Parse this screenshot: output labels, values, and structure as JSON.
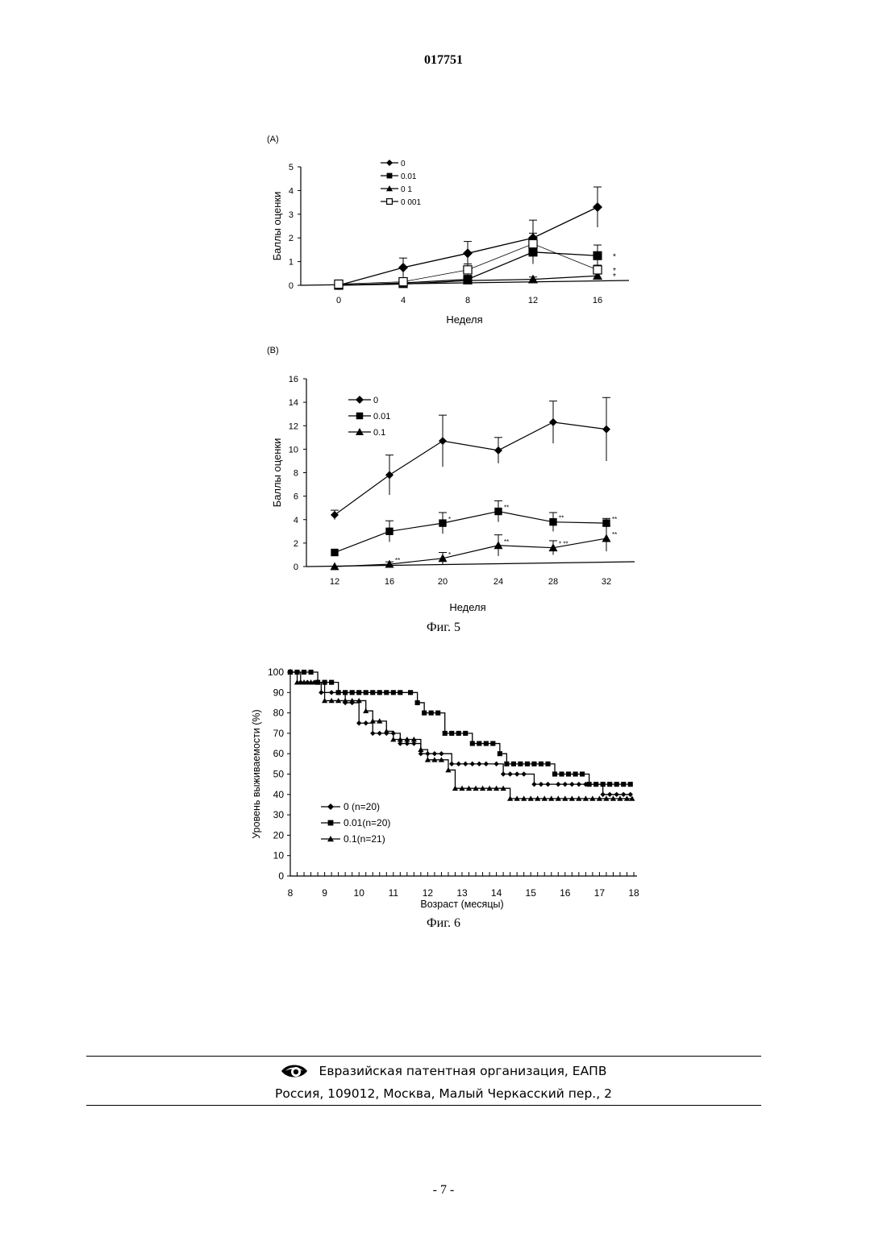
{
  "document": {
    "number": "017751",
    "fig5_caption": "Фиг. 5",
    "fig6_caption": "Фиг. 6",
    "page_number": "- 7 -"
  },
  "footer": {
    "org": "Евразийская патентная организация, ЕАПВ",
    "address": "Россия, 109012, Москва, Малый Черкасский пер., 2",
    "logo_icon": "eapo-eye-logo-icon"
  },
  "chart_data": [
    {
      "id": "fig5a",
      "panel_label": "(A)",
      "type": "line",
      "xlabel": "Неделя",
      "ylabel": "Баллы оценки",
      "x": [
        0,
        4,
        8,
        12,
        16
      ],
      "xticks": [
        "0",
        "4",
        "8",
        "12",
        "16"
      ],
      "yticks": [
        "0",
        "1",
        "2",
        "3",
        "4",
        "5"
      ],
      "ylim": [
        0,
        5
      ],
      "legend_position": "top-center",
      "series": [
        {
          "name": "0",
          "marker": "diamond",
          "values": [
            0.0,
            0.75,
            1.35,
            2.0,
            3.3
          ],
          "err": [
            0,
            0.4,
            0.5,
            0.75,
            0.85
          ],
          "annotation": ""
        },
        {
          "name": "0.01",
          "marker": "square",
          "values": [
            0.0,
            0.1,
            0.25,
            1.4,
            1.25
          ],
          "err": [
            0,
            0.1,
            0.15,
            0.5,
            0.45
          ],
          "annotation": "*"
        },
        {
          "name": "0 1",
          "marker": "triangle",
          "values": [
            0.0,
            0.05,
            0.2,
            0.25,
            0.4
          ],
          "err": [
            0,
            0.05,
            0.1,
            0.1,
            0.1
          ],
          "annotation": "*"
        },
        {
          "name": "0 001",
          "marker": "open-square",
          "values": [
            0.05,
            0.15,
            0.65,
            1.75,
            0.65
          ],
          "err": [
            0,
            0.1,
            0.25,
            0.45,
            0.2
          ],
          "annotation": "*"
        }
      ]
    },
    {
      "id": "fig5b",
      "panel_label": "(B)",
      "type": "line",
      "xlabel": "Неделя",
      "ylabel": "Баллы оценки",
      "x": [
        12,
        16,
        20,
        24,
        28,
        32
      ],
      "xticks": [
        "12",
        "16",
        "20",
        "24",
        "28",
        "32"
      ],
      "yticks": [
        "0",
        "2",
        "4",
        "6",
        "8",
        "10",
        "12",
        "14",
        "16"
      ],
      "ylim": [
        0,
        16
      ],
      "legend_position": "top-left",
      "series": [
        {
          "name": "0",
          "marker": "diamond",
          "values": [
            4.4,
            7.8,
            10.7,
            9.9,
            12.3,
            11.7
          ],
          "err": [
            0.4,
            1.7,
            2.2,
            1.1,
            1.8,
            2.7
          ],
          "annotations": [
            "",
            "",
            "",
            "",
            "",
            ""
          ]
        },
        {
          "name": "0.01",
          "marker": "square",
          "values": [
            1.2,
            3.0,
            3.7,
            4.7,
            3.8,
            3.7
          ],
          "err": [
            0,
            0.9,
            0.9,
            0.9,
            0.8,
            0.4
          ],
          "annotations": [
            "",
            "",
            "*",
            "**",
            "**",
            "**"
          ]
        },
        {
          "name": "0.1",
          "marker": "triangle",
          "values": [
            0.0,
            0.2,
            0.7,
            1.8,
            1.6,
            2.4
          ],
          "err": [
            0,
            0.2,
            0.5,
            0.9,
            0.6,
            1.1
          ],
          "annotations": [
            "",
            "**",
            "*",
            "**",
            "* **",
            "**"
          ]
        }
      ]
    },
    {
      "id": "fig6",
      "type": "line",
      "xlabel": "Возраст (месяцы)",
      "ylabel": "Уровень выживаемости (%)",
      "xticks": [
        "8",
        "9",
        "10",
        "11",
        "12",
        "13",
        "14",
        "15",
        "16",
        "17",
        "18"
      ],
      "yticks": [
        "0",
        "10",
        "20",
        "30",
        "40",
        "50",
        "60",
        "70",
        "80",
        "90",
        "100"
      ],
      "xlim": [
        8,
        18
      ],
      "ylim": [
        0,
        100
      ],
      "legend_position": "bottom-left",
      "series": [
        {
          "name": "0 (n=20)",
          "marker": "diamond",
          "points": [
            [
              8,
              100
            ],
            [
              8.3,
              95
            ],
            [
              8.5,
              95
            ],
            [
              8.7,
              95
            ],
            [
              8.9,
              90
            ],
            [
              9.2,
              90
            ],
            [
              9.4,
              90
            ],
            [
              9.6,
              85
            ],
            [
              9.8,
              85
            ],
            [
              10.0,
              75
            ],
            [
              10.2,
              75
            ],
            [
              10.4,
              70
            ],
            [
              10.6,
              70
            ],
            [
              10.8,
              70
            ],
            [
              11.0,
              70
            ],
            [
              11.2,
              65
            ],
            [
              11.4,
              65
            ],
            [
              11.6,
              65
            ],
            [
              11.8,
              60
            ],
            [
              12.0,
              60
            ],
            [
              12.2,
              60
            ],
            [
              12.4,
              60
            ],
            [
              12.7,
              55
            ],
            [
              12.9,
              55
            ],
            [
              13.1,
              55
            ],
            [
              13.3,
              55
            ],
            [
              13.5,
              55
            ],
            [
              13.7,
              55
            ],
            [
              14.0,
              55
            ],
            [
              14.2,
              50
            ],
            [
              14.4,
              50
            ],
            [
              14.6,
              50
            ],
            [
              14.8,
              50
            ],
            [
              15.1,
              45
            ],
            [
              15.3,
              45
            ],
            [
              15.5,
              45
            ],
            [
              15.8,
              45
            ],
            [
              16.0,
              45
            ],
            [
              16.2,
              45
            ],
            [
              16.4,
              45
            ],
            [
              16.6,
              45
            ],
            [
              16.9,
              45
            ],
            [
              17.1,
              40
            ],
            [
              17.3,
              40
            ],
            [
              17.5,
              40
            ],
            [
              17.7,
              40
            ],
            [
              17.9,
              40
            ]
          ]
        },
        {
          "name": "0.01(n=20)",
          "marker": "square",
          "points": [
            [
              8,
              100
            ],
            [
              8.2,
              100
            ],
            [
              8.4,
              100
            ],
            [
              8.6,
              100
            ],
            [
              8.8,
              95
            ],
            [
              9.0,
              95
            ],
            [
              9.2,
              95
            ],
            [
              9.4,
              90
            ],
            [
              9.6,
              90
            ],
            [
              9.8,
              90
            ],
            [
              10.0,
              90
            ],
            [
              10.2,
              90
            ],
            [
              10.4,
              90
            ],
            [
              10.6,
              90
            ],
            [
              10.8,
              90
            ],
            [
              11.0,
              90
            ],
            [
              11.2,
              90
            ],
            [
              11.5,
              90
            ],
            [
              11.7,
              85
            ],
            [
              11.9,
              80
            ],
            [
              12.1,
              80
            ],
            [
              12.3,
              80
            ],
            [
              12.5,
              70
            ],
            [
              12.7,
              70
            ],
            [
              12.9,
              70
            ],
            [
              13.1,
              70
            ],
            [
              13.3,
              65
            ],
            [
              13.5,
              65
            ],
            [
              13.7,
              65
            ],
            [
              13.9,
              65
            ],
            [
              14.1,
              60
            ],
            [
              14.3,
              55
            ],
            [
              14.5,
              55
            ],
            [
              14.7,
              55
            ],
            [
              14.9,
              55
            ],
            [
              15.1,
              55
            ],
            [
              15.3,
              55
            ],
            [
              15.5,
              55
            ],
            [
              15.7,
              50
            ],
            [
              15.9,
              50
            ],
            [
              16.1,
              50
            ],
            [
              16.3,
              50
            ],
            [
              16.5,
              50
            ],
            [
              16.7,
              45
            ],
            [
              16.9,
              45
            ],
            [
              17.1,
              45
            ],
            [
              17.3,
              45
            ],
            [
              17.5,
              45
            ],
            [
              17.7,
              45
            ],
            [
              17.9,
              45
            ]
          ]
        },
        {
          "name": "0.1(n=21)",
          "marker": "triangle",
          "points": [
            [
              8,
              100
            ],
            [
              8.2,
              95
            ],
            [
              8.4,
              95
            ],
            [
              8.6,
              95
            ],
            [
              8.8,
              95
            ],
            [
              9.0,
              86
            ],
            [
              9.2,
              86
            ],
            [
              9.4,
              86
            ],
            [
              9.6,
              86
            ],
            [
              9.8,
              86
            ],
            [
              10.0,
              86
            ],
            [
              10.2,
              81
            ],
            [
              10.4,
              76
            ],
            [
              10.6,
              76
            ],
            [
              10.8,
              71
            ],
            [
              11.0,
              67
            ],
            [
              11.2,
              67
            ],
            [
              11.4,
              67
            ],
            [
              11.6,
              67
            ],
            [
              11.8,
              62
            ],
            [
              12.0,
              57
            ],
            [
              12.2,
              57
            ],
            [
              12.4,
              57
            ],
            [
              12.6,
              52
            ],
            [
              12.8,
              43
            ],
            [
              13.0,
              43
            ],
            [
              13.2,
              43
            ],
            [
              13.4,
              43
            ],
            [
              13.6,
              43
            ],
            [
              13.8,
              43
            ],
            [
              14.0,
              43
            ],
            [
              14.2,
              43
            ],
            [
              14.4,
              38
            ],
            [
              14.6,
              38
            ],
            [
              14.8,
              38
            ],
            [
              15.0,
              38
            ],
            [
              15.2,
              38
            ],
            [
              15.4,
              38
            ],
            [
              15.6,
              38
            ],
            [
              15.8,
              38
            ],
            [
              16.0,
              38
            ],
            [
              16.2,
              38
            ],
            [
              16.4,
              38
            ],
            [
              16.6,
              38
            ],
            [
              16.8,
              38
            ],
            [
              17.0,
              38
            ],
            [
              17.2,
              38
            ],
            [
              17.4,
              38
            ],
            [
              17.6,
              38
            ],
            [
              17.8,
              38
            ],
            [
              17.95,
              38
            ]
          ]
        }
      ]
    }
  ]
}
